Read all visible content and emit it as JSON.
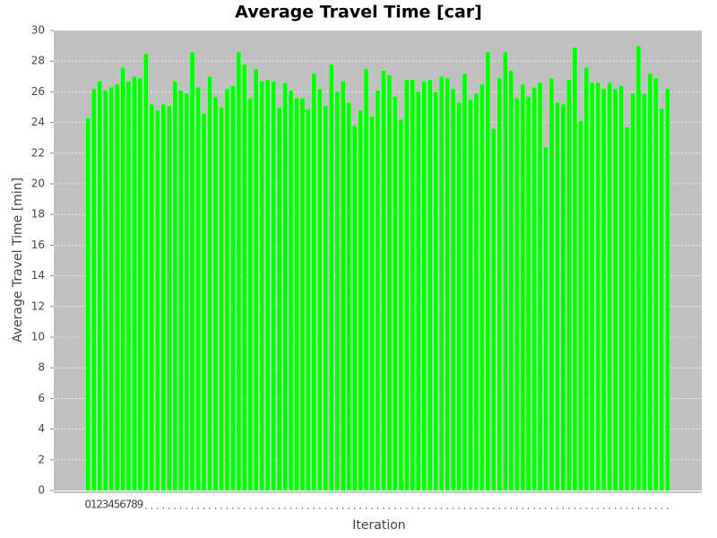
{
  "chart_data": {
    "type": "bar",
    "title": "Average Travel Time [car]",
    "x_label": "Iteration",
    "y_label": "Average Travel Time [min]",
    "color": "#00ff00",
    "grid": true,
    "ylim": [
      0,
      30
    ],
    "yticks": [
      0,
      2,
      4,
      6,
      8,
      10,
      12,
      14,
      16,
      18,
      20,
      22,
      24,
      26,
      28,
      30
    ],
    "categories": [
      "0",
      "1",
      "2",
      "3",
      "4",
      "5",
      "6",
      "7",
      "8",
      "9",
      null,
      null,
      null,
      null,
      null,
      null,
      null,
      null,
      null,
      null,
      null,
      null,
      null,
      null,
      null,
      null,
      null,
      null,
      null,
      null,
      null,
      null,
      null,
      null,
      null,
      null,
      null,
      null,
      null,
      null,
      null,
      null,
      null,
      null,
      null,
      null,
      null,
      null,
      null,
      null,
      null,
      null,
      null,
      null,
      null,
      null,
      null,
      null,
      null,
      null,
      null,
      null,
      null,
      null,
      null,
      null,
      null,
      null,
      null,
      null,
      null,
      null,
      null,
      null,
      null,
      null,
      null,
      null,
      null,
      null,
      null,
      null,
      null,
      null,
      null,
      null,
      null,
      null,
      null,
      null,
      null,
      null,
      null,
      null,
      null,
      null,
      null,
      null,
      null,
      null,
      null
    ],
    "values": [
      24.3,
      26.2,
      26.7,
      26.1,
      26.3,
      26.5,
      27.6,
      26.7,
      27.0,
      26.9,
      28.5,
      25.2,
      24.8,
      25.2,
      25.1,
      26.7,
      26.1,
      25.9,
      28.6,
      26.3,
      24.6,
      27.0,
      25.7,
      25.0,
      26.2,
      26.4,
      28.6,
      27.8,
      25.6,
      27.5,
      26.7,
      26.8,
      26.7,
      25.0,
      26.6,
      26.1,
      25.6,
      25.6,
      24.9,
      27.2,
      26.2,
      25.1,
      27.8,
      26.0,
      26.7,
      25.3,
      23.8,
      24.8,
      27.5,
      24.4,
      26.1,
      27.4,
      27.1,
      25.7,
      24.2,
      26.8,
      26.8,
      26.0,
      26.7,
      26.8,
      26.0,
      27.0,
      26.9,
      26.2,
      25.3,
      27.2,
      25.5,
      25.9,
      26.5,
      28.6,
      23.6,
      26.9,
      28.6,
      27.4,
      25.6,
      26.5,
      25.7,
      26.3,
      26.6,
      22.4,
      26.9,
      25.3,
      25.2,
      26.8,
      28.9,
      24.1,
      27.6,
      26.6,
      26.6,
      26.2,
      26.6,
      26.2,
      26.4,
      23.7,
      25.9,
      29.0,
      25.9,
      27.2,
      26.9,
      24.9,
      26.2
    ]
  }
}
